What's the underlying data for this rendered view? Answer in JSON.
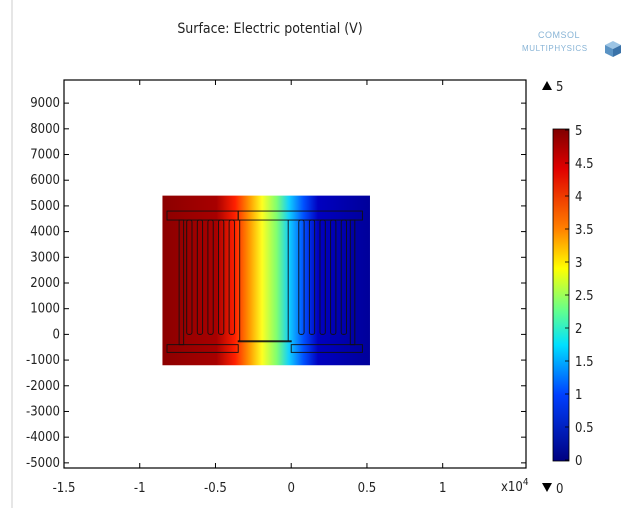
{
  "title": "Surface: Electric potential (V)",
  "logo": {
    "line1": "COMSOL",
    "line2": "MULTIPHYSICS"
  },
  "x_axis": {
    "ticks": [
      "-1.5",
      "-1",
      "-0.5",
      "0",
      "0.5",
      "1"
    ],
    "tick_values": [
      -15000,
      -10000,
      -5000,
      0,
      5000,
      10000
    ],
    "range": [
      -15000,
      15500
    ],
    "exponent_label": "x10",
    "exponent": "4"
  },
  "y_axis": {
    "ticks": [
      "9000",
      "8000",
      "7000",
      "6000",
      "5000",
      "4000",
      "3000",
      "2000",
      "1000",
      "0",
      "-1000",
      "-2000",
      "-3000",
      "-4000",
      "-5000"
    ],
    "tick_values": [
      9000,
      8000,
      7000,
      6000,
      5000,
      4000,
      3000,
      2000,
      1000,
      0,
      -1000,
      -2000,
      -3000,
      -4000,
      -5000
    ],
    "range": [
      -5200,
      9900
    ]
  },
  "colorbar": {
    "ticks": [
      "5",
      "4.5",
      "4",
      "3.5",
      "3",
      "2.5",
      "2",
      "1.5",
      "1",
      "0.5",
      "0"
    ],
    "tick_values": [
      5,
      4.5,
      4,
      3.5,
      3,
      2.5,
      2,
      1.5,
      1,
      0.5,
      0
    ],
    "max_label": "5",
    "min_label": "0",
    "colors": [
      "#800000",
      "#ff0000",
      "#ffff00",
      "#00ffff",
      "#0000ff",
      "#000080"
    ]
  },
  "chart_data": {
    "type": "heatmap",
    "title": "Surface: Electric potential (V)",
    "xlim": [
      -15000,
      15000
    ],
    "ylim": [
      -5000,
      9000
    ],
    "domain": {
      "x": [
        -8500,
        5200
      ],
      "y": [
        -1200,
        5400
      ]
    },
    "gradient": {
      "x_high": -4000,
      "x_low": 300,
      "value_high": 5,
      "value_low": 0
    },
    "color_range": [
      0,
      5
    ]
  }
}
